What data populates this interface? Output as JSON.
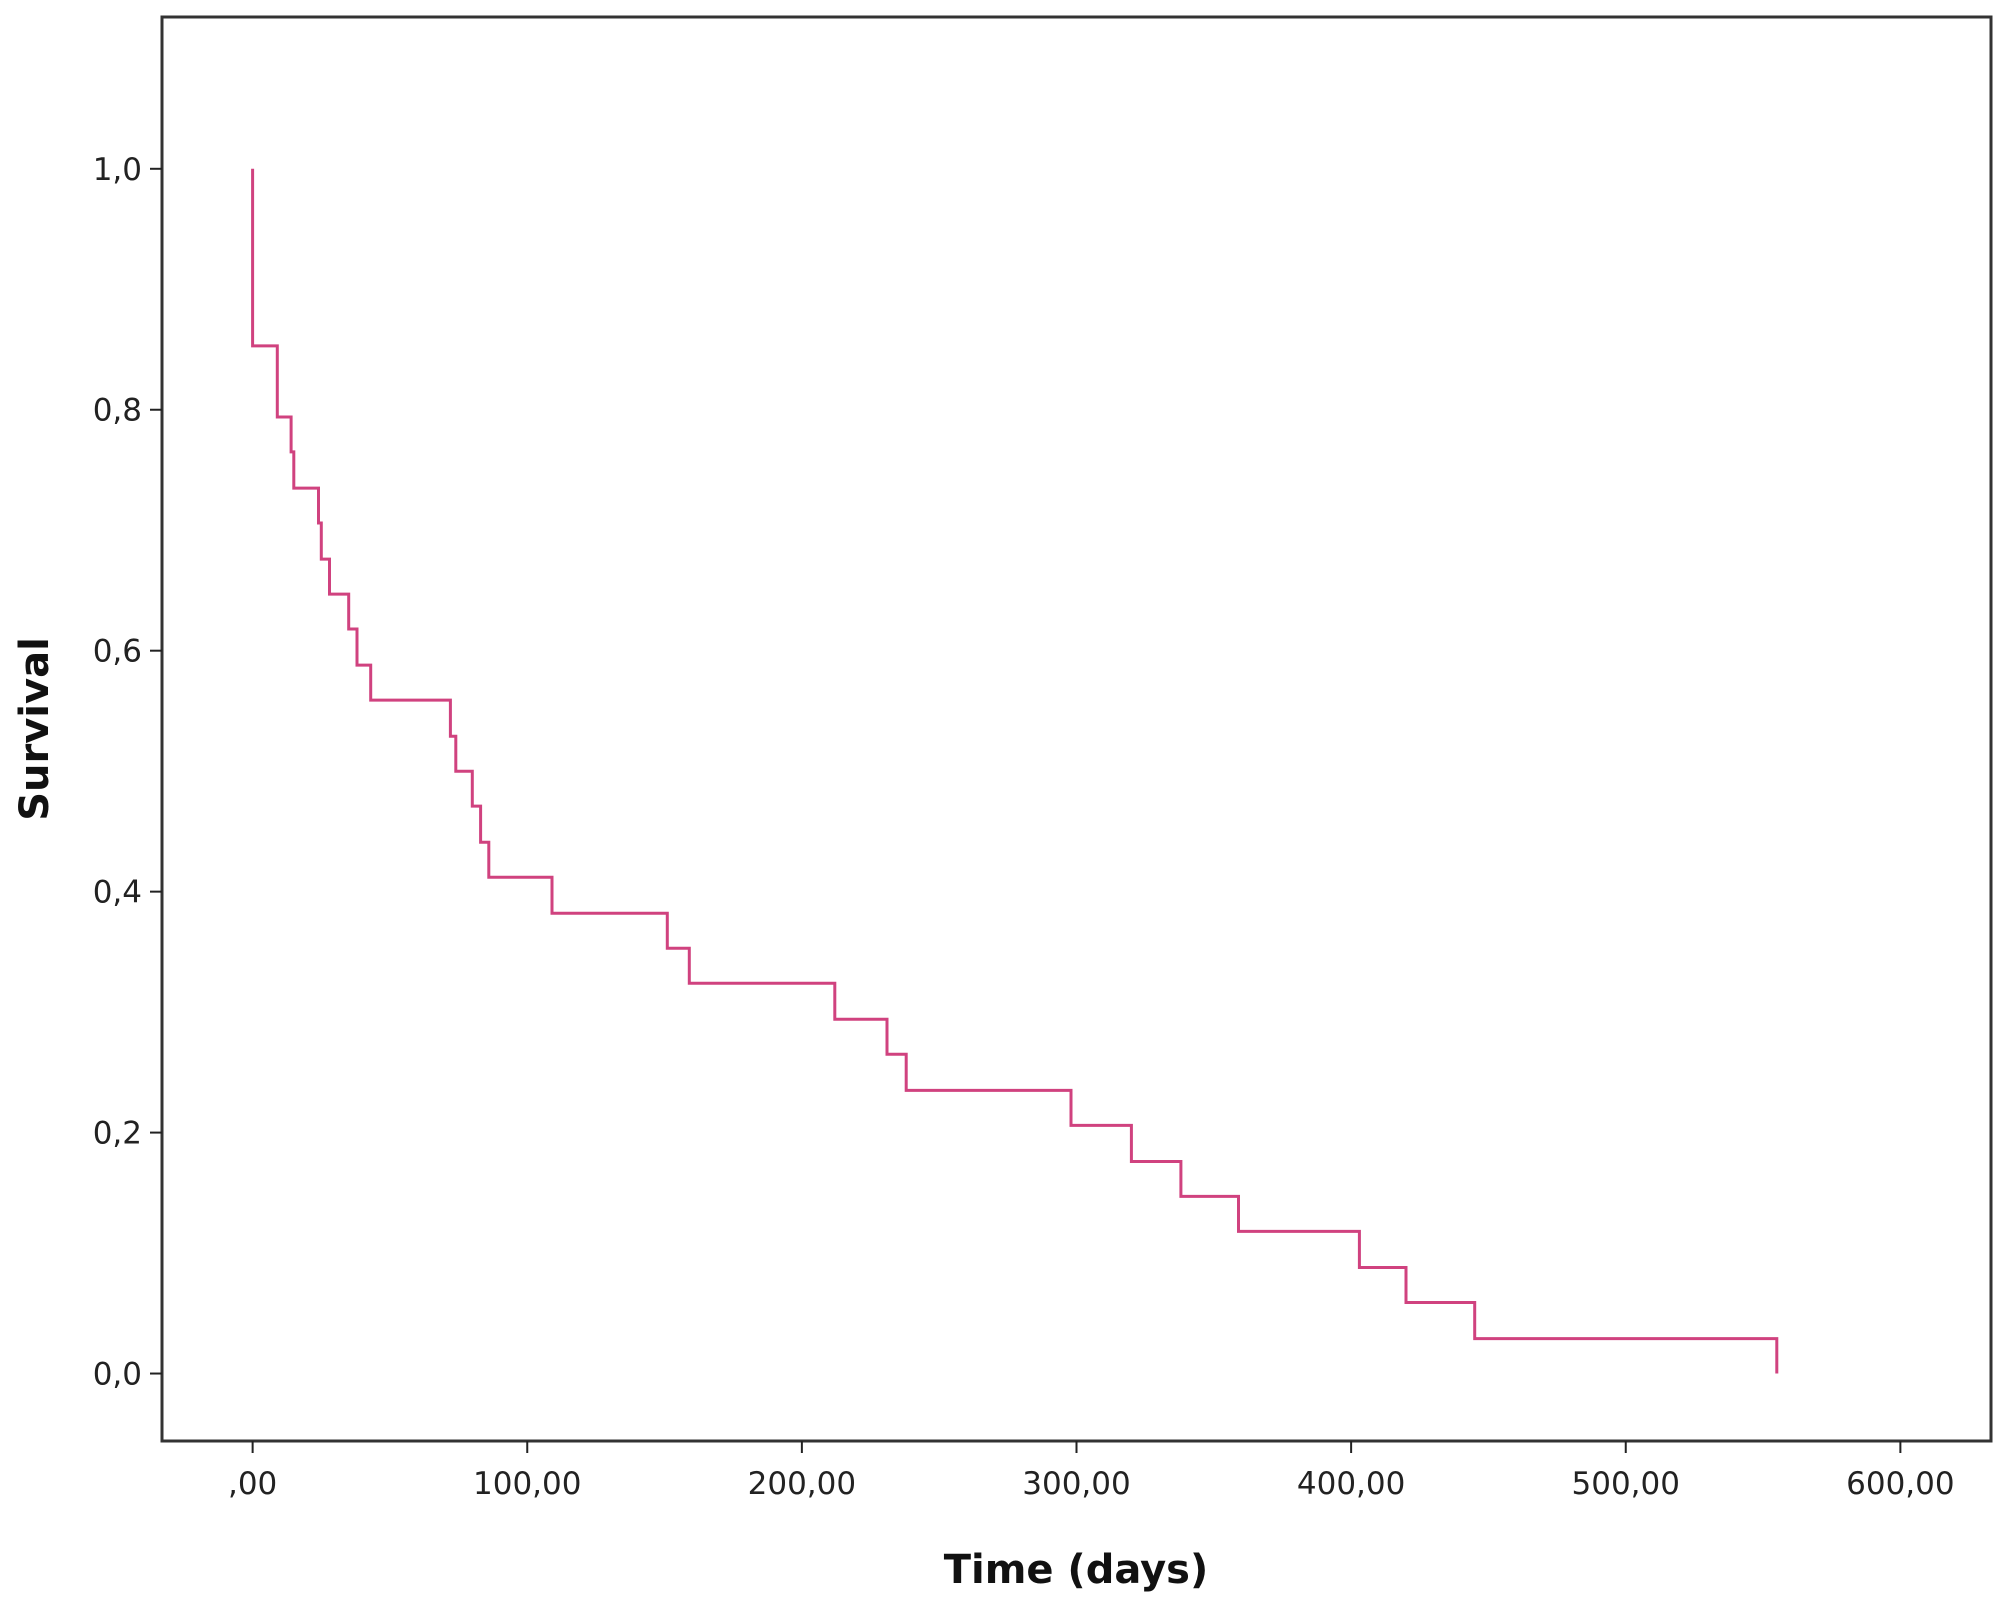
{
  "chart_data": {
    "type": "line",
    "step": true,
    "xlabel": "Time (days)",
    "ylabel": "Survival",
    "xlim": [
      -33,
      633
    ],
    "ylim": [
      -0.056,
      1.126
    ],
    "x_ticks": [
      0,
      100,
      200,
      300,
      400,
      500,
      600
    ],
    "x_tick_labels": [
      ",00",
      "100,00",
      "200,00",
      "300,00",
      "400,00",
      "500,00",
      "600,00"
    ],
    "y_ticks": [
      0.0,
      0.2,
      0.4,
      0.6,
      0.8,
      1.0
    ],
    "y_tick_labels": [
      "0,0",
      "0,2",
      "0,4",
      "0,6",
      "0,8",
      "1,0"
    ],
    "grid": false,
    "colors": {
      "series": "#d0427f",
      "axis": "#222222",
      "frame": "#333333"
    },
    "series": [
      {
        "points": [
          [
            0,
            1.0
          ],
          [
            0,
            0.853
          ],
          [
            9,
            0.853
          ],
          [
            9,
            0.794
          ],
          [
            14,
            0.794
          ],
          [
            14,
            0.765
          ],
          [
            15,
            0.765
          ],
          [
            15,
            0.735
          ],
          [
            24,
            0.735
          ],
          [
            24,
            0.706
          ],
          [
            25,
            0.706
          ],
          [
            25,
            0.676
          ],
          [
            28,
            0.676
          ],
          [
            28,
            0.647
          ],
          [
            35,
            0.647
          ],
          [
            35,
            0.618
          ],
          [
            38,
            0.618
          ],
          [
            38,
            0.588
          ],
          [
            43,
            0.588
          ],
          [
            43,
            0.559
          ],
          [
            72,
            0.559
          ],
          [
            72,
            0.529
          ],
          [
            74,
            0.529
          ],
          [
            74,
            0.5
          ],
          [
            80,
            0.5
          ],
          [
            80,
            0.471
          ],
          [
            83,
            0.471
          ],
          [
            83,
            0.441
          ],
          [
            86,
            0.441
          ],
          [
            86,
            0.412
          ],
          [
            109,
            0.412
          ],
          [
            109,
            0.382
          ],
          [
            151,
            0.382
          ],
          [
            151,
            0.353
          ],
          [
            159,
            0.353
          ],
          [
            159,
            0.324
          ],
          [
            212,
            0.324
          ],
          [
            212,
            0.294
          ],
          [
            231,
            0.294
          ],
          [
            231,
            0.265
          ],
          [
            238,
            0.265
          ],
          [
            238,
            0.235
          ],
          [
            298,
            0.235
          ],
          [
            298,
            0.206
          ],
          [
            320,
            0.206
          ],
          [
            320,
            0.176
          ],
          [
            338,
            0.176
          ],
          [
            338,
            0.147
          ],
          [
            359,
            0.147
          ],
          [
            359,
            0.118
          ],
          [
            403,
            0.118
          ],
          [
            403,
            0.088
          ],
          [
            420,
            0.088
          ],
          [
            420,
            0.059
          ],
          [
            445,
            0.059
          ],
          [
            445,
            0.029
          ],
          [
            555,
            0.029
          ],
          [
            555,
            0.0
          ]
        ]
      }
    ]
  }
}
